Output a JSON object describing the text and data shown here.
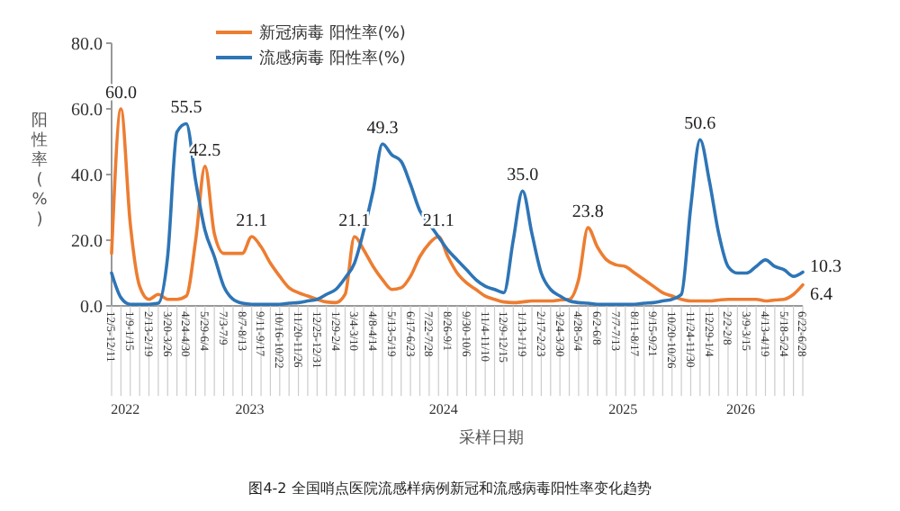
{
  "chart_data": {
    "type": "line",
    "title": "图4-2 全国哨点医院流感样病例新冠和流感病毒阳性率变化趋势",
    "xlabel": "采样日期",
    "ylabel": "阳性率(%)",
    "categories": [
      "12/5-12/11",
      null,
      "1/9-1/15",
      null,
      "2/13-2/19",
      null,
      "3/20-3/26",
      null,
      "4/24-4/30",
      null,
      "5/29-6/4",
      null,
      "7/3-7/9",
      null,
      "8/7-8/13",
      null,
      "9/11-9/17",
      null,
      "10/16-10/22",
      null,
      "11/20-11/26",
      null,
      "12/25-12/31",
      null,
      "1/29-2/4",
      null,
      "3/4-3/10",
      null,
      "4/8-4/14",
      null,
      "5/13-5/19",
      null,
      "6/17-6/23",
      null,
      "7/22-7/28",
      null,
      "8/26-9/1",
      null,
      "9/30-10/6",
      null,
      "11/4-11/10",
      null,
      "12/9-12/15",
      null,
      "1/13-1/19",
      null,
      "2/17-2/23",
      null,
      "3/24-3/30",
      null,
      "4/28-5/4",
      null,
      "6/2-6/8",
      null,
      "7/7-7/13",
      null,
      "8/11-8/17",
      null,
      "9/15-9/21",
      null,
      "10/20-10/26",
      null,
      "11/24-11/30",
      null,
      "12/29-1/4",
      null,
      "2/2-2/8",
      null,
      "3/9-3/15",
      null,
      "4/13-4/19",
      null,
      "5/18-5/24",
      null,
      "6/22-6/28"
    ],
    "ylim": [
      0,
      80
    ],
    "yticks": [
      {
        "value": 0,
        "label": "0.0"
      },
      {
        "value": 20,
        "label": "20.0"
      },
      {
        "value": 40,
        "label": "40.0"
      },
      {
        "value": 60,
        "label": "60.0"
      },
      {
        "value": 80,
        "label": "80.0"
      }
    ],
    "series": [
      {
        "name": "新冠病毒 阳性率(%)",
        "color": "#ed7d31",
        "values": [
          16,
          60,
          25,
          6,
          2,
          3.5,
          2,
          2,
          3,
          20,
          42.5,
          22,
          16,
          16,
          16,
          21.1,
          18,
          13,
          9,
          5.5,
          4,
          3,
          2,
          1.2,
          1,
          3.5,
          21.1,
          17,
          12,
          8,
          5,
          5.5,
          9,
          15,
          19,
          21.1,
          15,
          10,
          7,
          5,
          3,
          2,
          1.2,
          1,
          1.2,
          1.5,
          1.5,
          1.5,
          1.8,
          2,
          8,
          23.8,
          18,
          14,
          12.5,
          12,
          10,
          8,
          6,
          4,
          3,
          2,
          1.5,
          1.5,
          1.5,
          1.8,
          2,
          2,
          2,
          2,
          1.5,
          1.8,
          2,
          3.5,
          6.4
        ],
        "value_labels": [
          null,
          "60.0",
          null,
          null,
          null,
          null,
          null,
          null,
          null,
          null,
          "42.5",
          null,
          null,
          null,
          null,
          "21.1",
          null,
          null,
          null,
          null,
          null,
          null,
          null,
          null,
          null,
          null,
          "21.1",
          null,
          null,
          null,
          null,
          null,
          null,
          null,
          null,
          "21.1",
          null,
          null,
          null,
          null,
          null,
          null,
          null,
          null,
          null,
          null,
          null,
          null,
          null,
          null,
          null,
          "23.8",
          null,
          null,
          null,
          null,
          null,
          null,
          null,
          null,
          null,
          null,
          null,
          null,
          null,
          null,
          null,
          null,
          null,
          null,
          null,
          null,
          null,
          null,
          "6.4"
        ]
      },
      {
        "name": "流感病毒 阳性率(%)",
        "color": "#2e75b6",
        "values": [
          10,
          2.5,
          0.5,
          0.5,
          0.5,
          0.8,
          15,
          53,
          55.5,
          38,
          23,
          15,
          6,
          2,
          0.8,
          0.5,
          0.5,
          0.5,
          0.5,
          0.8,
          1,
          1.5,
          2,
          3.5,
          5,
          8.5,
          13,
          23,
          35,
          49.3,
          46,
          44,
          37,
          29,
          25,
          21,
          17,
          14,
          11,
          8,
          6,
          5,
          4,
          20,
          35.0,
          22,
          10,
          5,
          3,
          1.5,
          1,
          0.8,
          0.5,
          0.5,
          0.5,
          0.5,
          0.5,
          0.8,
          1,
          1.5,
          2,
          3.5,
          30,
          50.6,
          38,
          22,
          12,
          10,
          10,
          12,
          14,
          12,
          11,
          9,
          10.3
        ],
        "value_labels": [
          null,
          null,
          null,
          null,
          null,
          null,
          null,
          null,
          "55.5",
          null,
          null,
          null,
          null,
          null,
          null,
          null,
          null,
          null,
          null,
          null,
          null,
          null,
          null,
          null,
          null,
          null,
          null,
          null,
          null,
          "49.3",
          null,
          null,
          null,
          null,
          null,
          null,
          null,
          null,
          null,
          null,
          null,
          null,
          null,
          null,
          "35.0",
          null,
          null,
          null,
          null,
          null,
          null,
          null,
          null,
          null,
          null,
          null,
          null,
          null,
          null,
          null,
          null,
          null,
          null,
          "50.6",
          null,
          null,
          null,
          null,
          null,
          null,
          null,
          null,
          null,
          null,
          "10.3"
        ]
      }
    ],
    "annotations": [
      "2022",
      "2023",
      "2024",
      "2025",
      "2026"
    ],
    "legend": "top",
    "grid": false,
    "marker": "none",
    "line_style": "solid"
  }
}
